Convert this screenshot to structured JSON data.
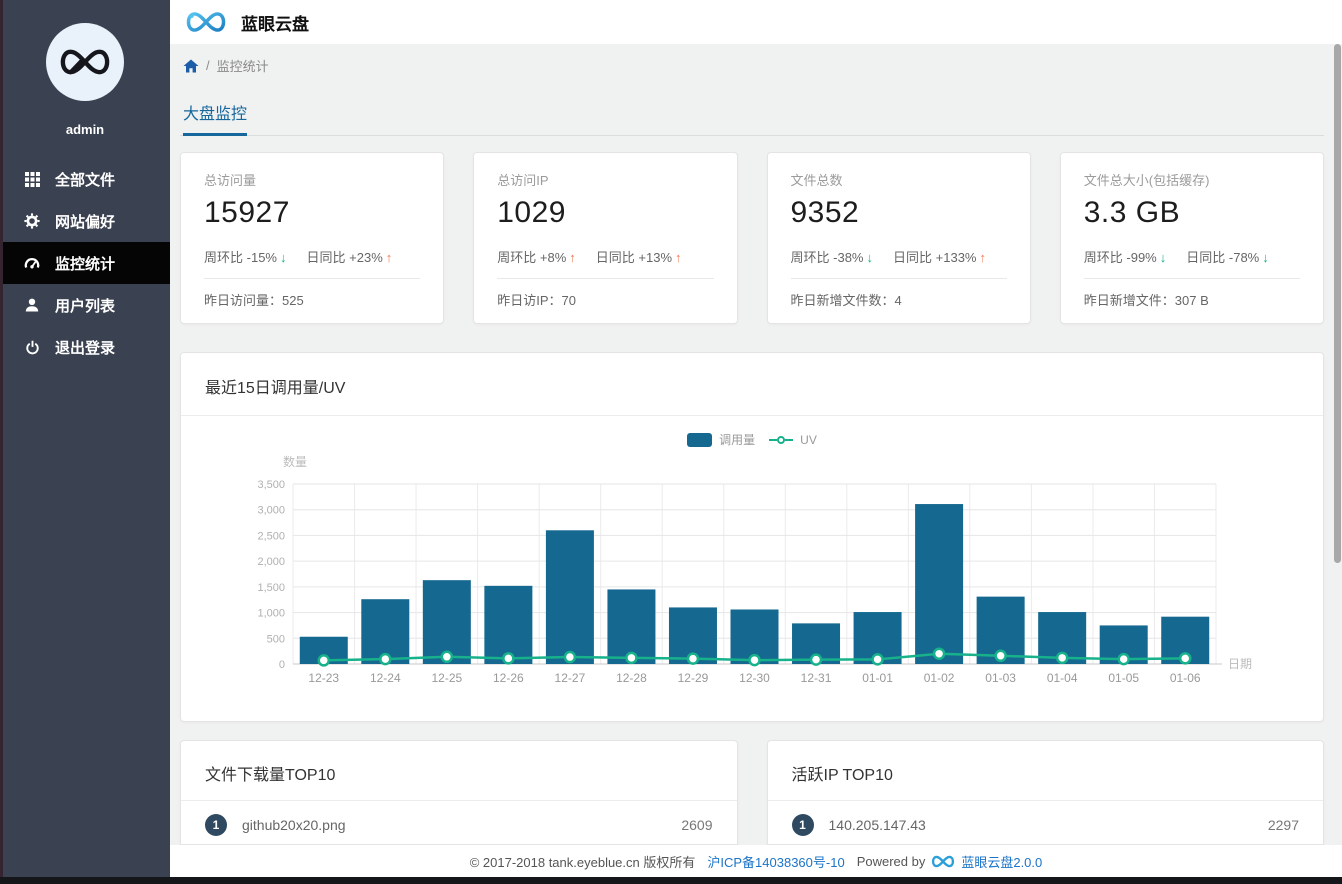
{
  "app": {
    "title": "蓝眼云盘",
    "user": "admin"
  },
  "sidebar": {
    "items": [
      {
        "label": "全部文件",
        "icon": "grid-icon",
        "active": false
      },
      {
        "label": "网站偏好",
        "icon": "gear-icon",
        "active": false
      },
      {
        "label": "监控统计",
        "icon": "dashboard-icon",
        "active": true
      },
      {
        "label": "用户列表",
        "icon": "user-icon",
        "active": false
      },
      {
        "label": "退出登录",
        "icon": "power-icon",
        "active": false
      }
    ]
  },
  "breadcrumb": {
    "separator": "/",
    "current": "监控统计"
  },
  "tabs": [
    {
      "label": "大盘监控",
      "active": true
    }
  ],
  "stat_cards": [
    {
      "label": "总访问量",
      "value": "15927",
      "week": {
        "label": "周环比",
        "delta": "-15%",
        "dir": "down"
      },
      "day": {
        "label": "日同比",
        "delta": "+23%",
        "dir": "up"
      },
      "foot": {
        "label": "昨日访问量：",
        "value": "525"
      }
    },
    {
      "label": "总访问IP",
      "value": "1029",
      "week": {
        "label": "周环比",
        "delta": "+8%",
        "dir": "up"
      },
      "day": {
        "label": "日同比",
        "delta": "+13%",
        "dir": "up"
      },
      "foot": {
        "label": "昨日访IP：",
        "value": "70"
      }
    },
    {
      "label": "文件总数",
      "value": "9352",
      "week": {
        "label": "周环比",
        "delta": "-38%",
        "dir": "down"
      },
      "day": {
        "label": "日同比",
        "delta": "+133%",
        "dir": "up"
      },
      "foot": {
        "label": "昨日新增文件数：",
        "value": "4"
      }
    },
    {
      "label": "文件总大小(包括缓存)",
      "value": "3.3 GB",
      "week": {
        "label": "周环比",
        "delta": "-99%",
        "dir": "down"
      },
      "day": {
        "label": "日同比",
        "delta": "-78%",
        "dir": "down"
      },
      "foot": {
        "label": "昨日新增文件：",
        "value": "307 B"
      }
    }
  ],
  "chart_card": {
    "title": "最近15日调用量/UV"
  },
  "chart_data": {
    "type": "bar+line",
    "categories": [
      "12-23",
      "12-24",
      "12-25",
      "12-26",
      "12-27",
      "12-28",
      "12-29",
      "12-30",
      "12-31",
      "01-01",
      "01-02",
      "01-03",
      "01-04",
      "01-05",
      "01-06"
    ],
    "series": [
      {
        "name": "调用量",
        "type": "bar",
        "color": "#15688f",
        "values": [
          530,
          1260,
          1630,
          1520,
          2600,
          1450,
          1100,
          1060,
          790,
          1010,
          3110,
          1310,
          1010,
          750,
          920
        ]
      },
      {
        "name": "UV",
        "type": "line",
        "color": "#17b28b",
        "values": [
          70,
          95,
          140,
          110,
          135,
          120,
          105,
          75,
          85,
          90,
          200,
          160,
          120,
          95,
          110
        ]
      }
    ],
    "title": "最近15日调用量/UV",
    "xlabel": "日期",
    "ylabel": "数量",
    "ylim": [
      0,
      3500
    ],
    "ytick_step": 500,
    "grid": true,
    "legend_position": "top-center"
  },
  "top_lists": [
    {
      "title": "文件下载量TOP10",
      "rows": [
        {
          "rank": "1",
          "name": "github20x20.png",
          "value": "2609"
        }
      ]
    },
    {
      "title": "活跃IP TOP10",
      "rows": [
        {
          "rank": "1",
          "name": "140.205.147.43",
          "value": "2297"
        }
      ]
    }
  ],
  "footer": {
    "copyright": "© 2017-2018 tank.eyeblue.cn 版权所有",
    "icp_link": "沪ICP备14038360号-10",
    "powered_by": "Powered by",
    "brand_link": "蓝眼云盘2.0.0"
  },
  "colors": {
    "sidebar_bg": "#3a4150",
    "active_item_bg": "#050505",
    "accent_blue": "#15679c",
    "bar_color": "#15688f",
    "line_color": "#17b28b",
    "up_arrow": "#f4794f",
    "down_arrow": "#13b389",
    "link_blue": "#1b74c8"
  }
}
